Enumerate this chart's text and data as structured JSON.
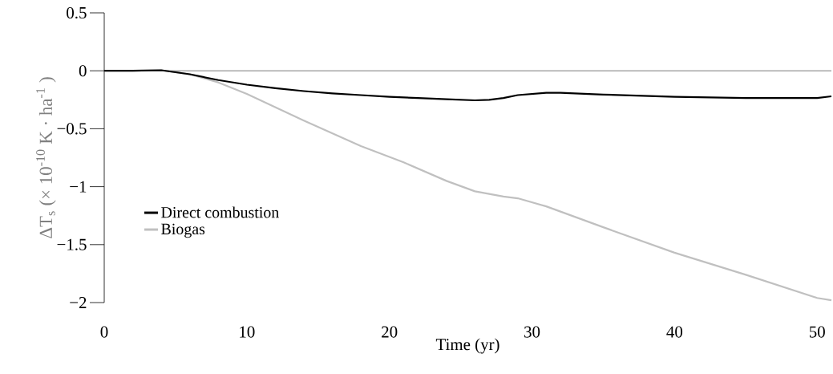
{
  "chart_data": {
    "type": "line",
    "xlabel": "Time (yr)",
    "ylabel": "ΔT$_{s}$ (× 10$^{-10}$ K · ha$^{-1}$ )",
    "xlim": [
      0,
      51
    ],
    "ylim": [
      -2,
      0.5
    ],
    "xticks": [
      0,
      10,
      20,
      30,
      40,
      50
    ],
    "yticks": [
      {
        "value": -2,
        "label": "−2"
      },
      {
        "value": -1.5,
        "label": "−1.5"
      },
      {
        "value": -1,
        "label": "−1"
      },
      {
        "value": -0.5,
        "label": "−0.5"
      },
      0,
      0.5
    ],
    "grid": false,
    "legend": "bottom left",
    "marker": "none",
    "line_style": "solid",
    "ref_lines": [
      {
        "axis": "y",
        "value": 0,
        "color": "#555555"
      }
    ],
    "series": [
      {
        "name": "Direct combustion",
        "color": "#000000",
        "x": [
          0,
          2,
          4,
          6,
          8,
          10,
          12,
          14,
          16,
          18,
          20,
          22,
          24,
          26,
          27,
          28,
          29,
          31,
          32,
          35,
          40,
          45,
          50,
          51
        ],
        "values": [
          0,
          0,
          0.005,
          -0.03,
          -0.08,
          -0.12,
          -0.15,
          -0.175,
          -0.195,
          -0.21,
          -0.225,
          -0.235,
          -0.245,
          -0.255,
          -0.25,
          -0.235,
          -0.21,
          -0.19,
          -0.19,
          -0.205,
          -0.225,
          -0.235,
          -0.235,
          -0.22
        ]
      },
      {
        "name": "Biogas",
        "color": "#c0c0c0",
        "x": [
          0,
          2,
          4,
          6,
          8,
          10,
          14,
          18,
          21,
          24,
          26,
          28,
          29,
          31,
          35,
          40,
          45,
          50,
          51
        ],
        "values": [
          0,
          0,
          0.005,
          -0.03,
          -0.1,
          -0.2,
          -0.43,
          -0.65,
          -0.79,
          -0.95,
          -1.04,
          -1.085,
          -1.1,
          -1.17,
          -1.35,
          -1.57,
          -1.76,
          -1.96,
          -1.98
        ]
      }
    ]
  }
}
